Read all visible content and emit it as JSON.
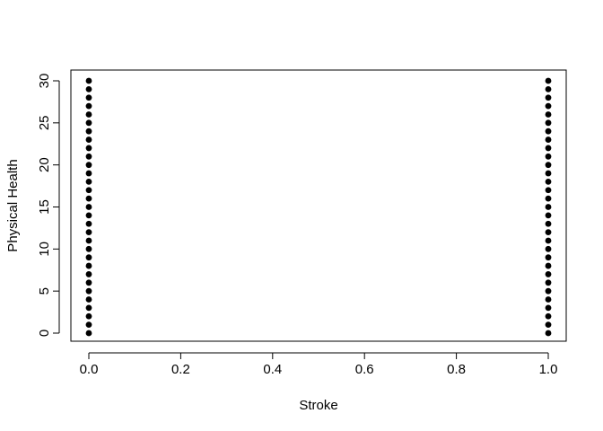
{
  "chart_data": {
    "type": "scatter",
    "title": "",
    "xlabel": "Stroke",
    "ylabel": "Physical Health",
    "xlim": [
      0,
      1
    ],
    "ylim": [
      0,
      30
    ],
    "x_ticks": [
      "0.0",
      "0.2",
      "0.4",
      "0.6",
      "0.8",
      "1.0"
    ],
    "y_ticks": [
      "0",
      "5",
      "10",
      "15",
      "20",
      "25",
      "30"
    ],
    "grid": false,
    "legend": "none",
    "marker_color": "#000000",
    "series": [
      {
        "x": [
          0,
          0,
          0,
          0,
          0,
          0,
          0,
          0,
          0,
          0,
          0,
          0,
          0,
          0,
          0,
          0,
          0,
          0,
          0,
          0,
          0,
          0,
          0,
          0,
          0,
          0,
          0,
          0,
          0,
          0,
          0,
          1,
          1,
          1,
          1,
          1,
          1,
          1,
          1,
          1,
          1,
          1,
          1,
          1,
          1,
          1,
          1,
          1,
          1,
          1,
          1,
          1,
          1,
          1,
          1,
          1,
          1,
          1,
          1,
          1,
          1,
          1
        ],
        "y": [
          0,
          1,
          2,
          3,
          4,
          5,
          6,
          7,
          8,
          9,
          10,
          11,
          12,
          13,
          14,
          15,
          16,
          17,
          18,
          19,
          20,
          21,
          22,
          23,
          24,
          25,
          26,
          27,
          28,
          29,
          30,
          0,
          1,
          2,
          3,
          4,
          5,
          6,
          7,
          8,
          9,
          10,
          11,
          12,
          13,
          14,
          15,
          16,
          17,
          18,
          19,
          20,
          21,
          22,
          23,
          24,
          25,
          26,
          27,
          28,
          29,
          30
        ]
      }
    ]
  }
}
